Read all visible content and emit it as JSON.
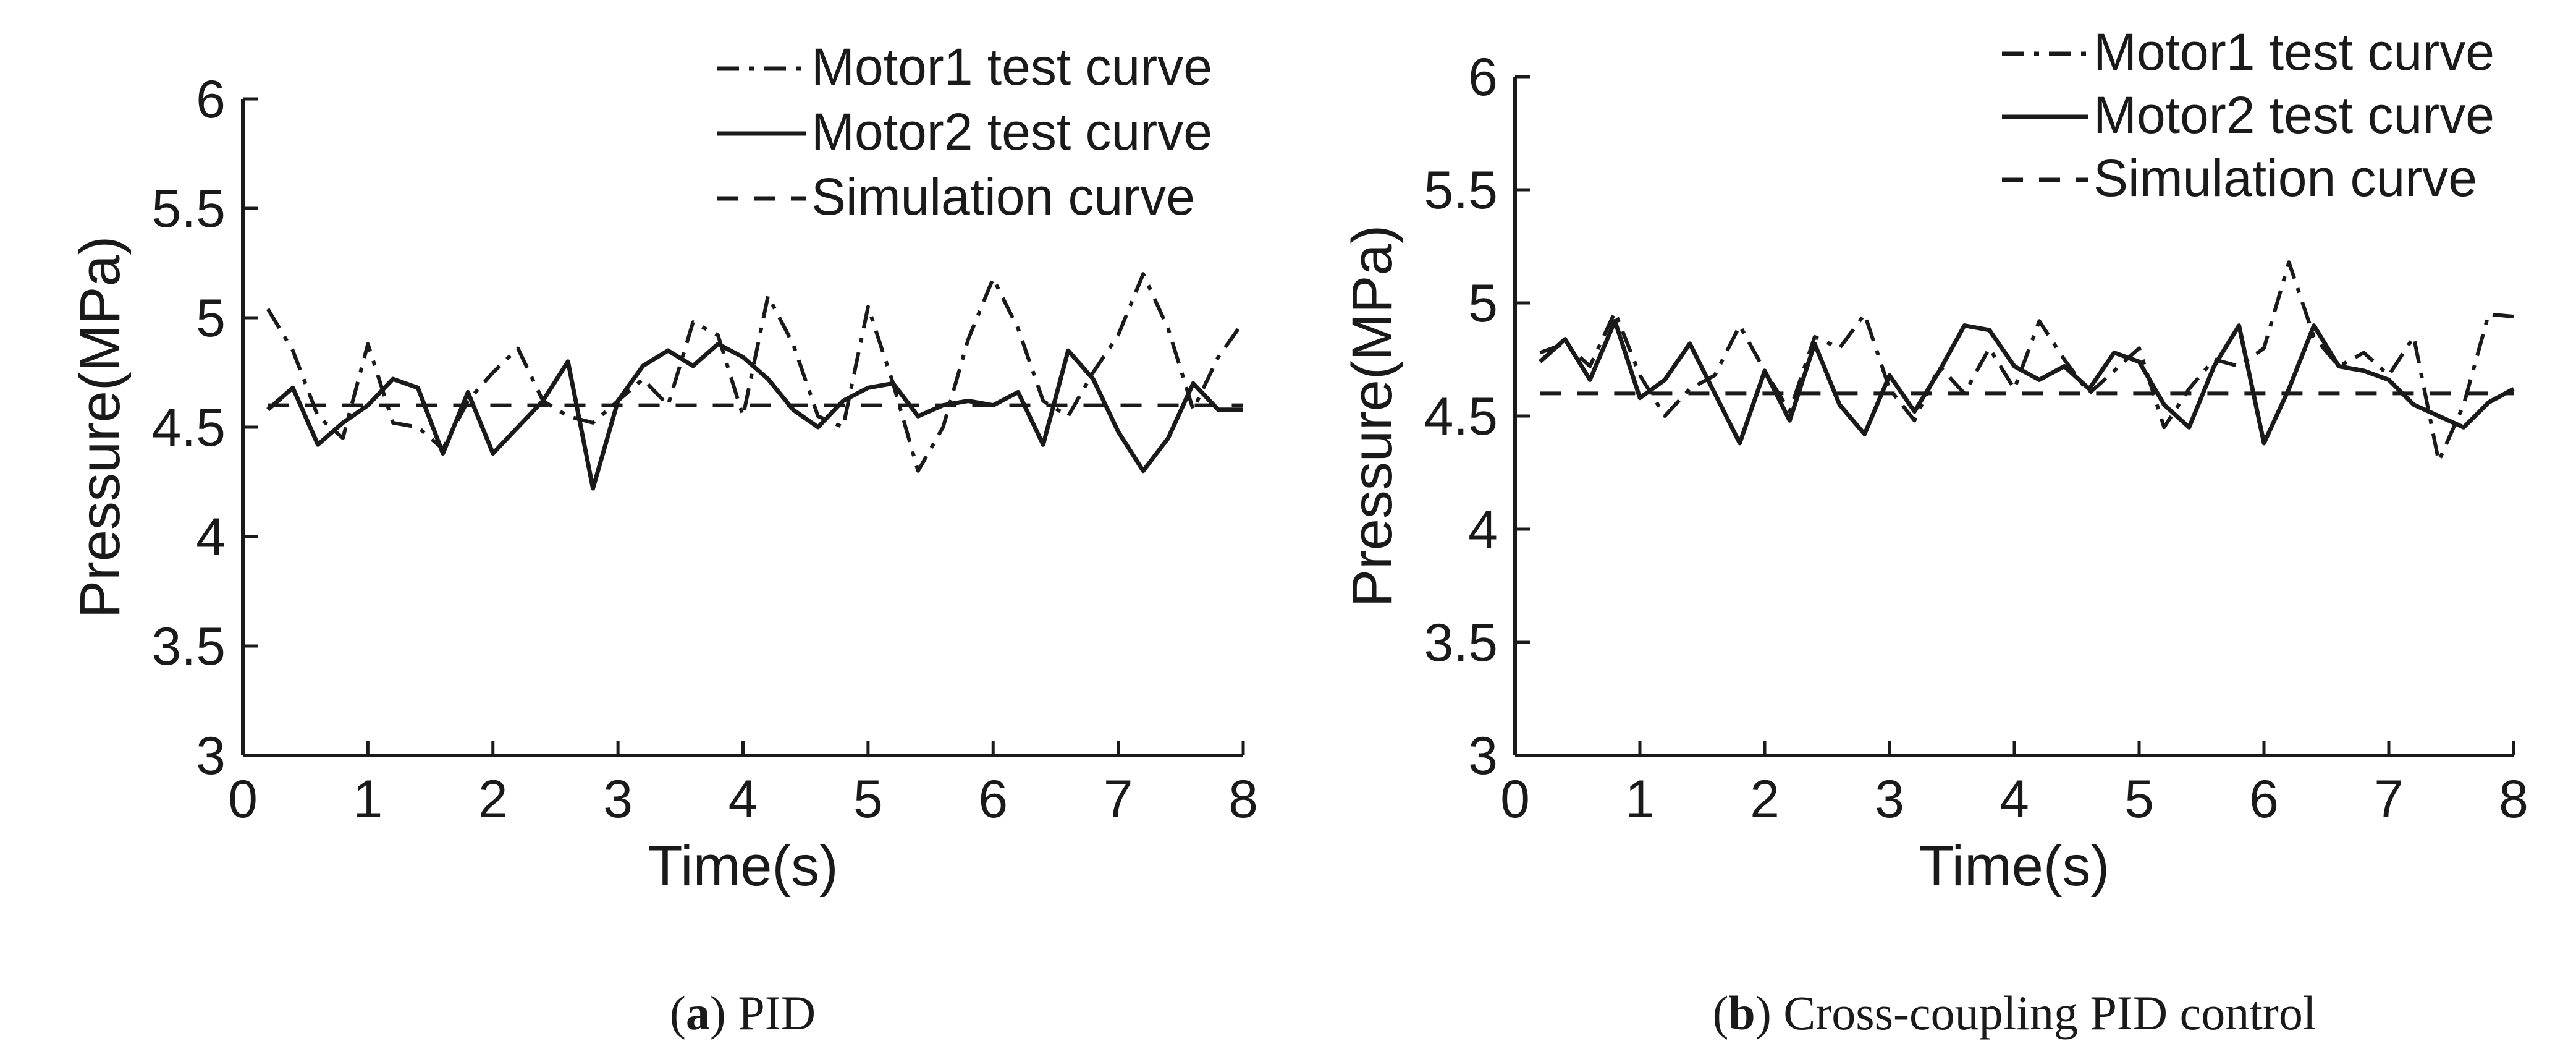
{
  "chart_data": [
    {
      "type": "line",
      "title": "",
      "xlabel": "Time(s)",
      "ylabel": "Pressure(MPa)",
      "xlim": [
        0,
        8
      ],
      "ylim": [
        3,
        6
      ],
      "xticks": [
        0,
        1,
        2,
        3,
        4,
        5,
        6,
        7,
        8
      ],
      "yticks": [
        3,
        3.5,
        4,
        4.5,
        5,
        5.5,
        6
      ],
      "xtick_labels": [
        "0",
        "1",
        "2",
        "3",
        "4",
        "5",
        "6",
        "7",
        "8"
      ],
      "ytick_labels": [
        "3",
        "3.5",
        "4",
        "4.5",
        "5",
        "5.5",
        "6"
      ],
      "grid": false,
      "legend_position": "top-right",
      "caption_letter": "a",
      "caption_text": " PID",
      "caption_paren_open": "(",
      "caption_paren_close": ")",
      "series": [
        {
          "name": "Motor1 test curve",
          "style": "dashdot",
          "x": [
            0.2,
            0.4,
            0.6,
            0.8,
            1.0,
            1.2,
            1.4,
            1.6,
            1.8,
            2.0,
            2.2,
            2.4,
            2.6,
            2.8,
            3.0,
            3.2,
            3.4,
            3.6,
            3.8,
            4.0,
            4.2,
            4.4,
            4.6,
            4.8,
            5.0,
            5.2,
            5.4,
            5.6,
            5.8,
            6.0,
            6.2,
            6.4,
            6.6,
            6.8,
            7.0,
            7.2,
            7.4,
            7.6,
            7.8,
            8.0
          ],
          "y": [
            5.04,
            4.85,
            4.55,
            4.45,
            4.88,
            4.52,
            4.5,
            4.4,
            4.62,
            4.75,
            4.86,
            4.62,
            4.55,
            4.52,
            4.62,
            4.72,
            4.6,
            4.98,
            4.92,
            4.55,
            5.1,
            4.88,
            4.55,
            4.5,
            5.05,
            4.7,
            4.3,
            4.5,
            4.9,
            5.18,
            4.95,
            4.62,
            4.55,
            4.75,
            4.92,
            5.2,
            4.95,
            4.58,
            4.82,
            4.98
          ]
        },
        {
          "name": "Motor2 test curve",
          "style": "solid",
          "x": [
            0.2,
            0.4,
            0.6,
            0.8,
            1.0,
            1.2,
            1.4,
            1.6,
            1.8,
            2.0,
            2.2,
            2.4,
            2.6,
            2.8,
            3.0,
            3.2,
            3.4,
            3.6,
            3.8,
            4.0,
            4.2,
            4.4,
            4.6,
            4.8,
            5.0,
            5.2,
            5.4,
            5.6,
            5.8,
            6.0,
            6.2,
            6.4,
            6.6,
            6.8,
            7.0,
            7.2,
            7.4,
            7.6,
            7.8,
            8.0
          ],
          "y": [
            4.58,
            4.68,
            4.42,
            4.52,
            4.6,
            4.72,
            4.68,
            4.38,
            4.66,
            4.38,
            4.5,
            4.62,
            4.8,
            4.22,
            4.62,
            4.78,
            4.85,
            4.78,
            4.88,
            4.82,
            4.72,
            4.58,
            4.5,
            4.62,
            4.68,
            4.7,
            4.55,
            4.6,
            4.62,
            4.6,
            4.66,
            4.42,
            4.85,
            4.72,
            4.48,
            4.3,
            4.45,
            4.7,
            4.58,
            4.58
          ]
        },
        {
          "name": "Simulation curve",
          "style": "dashed",
          "x": [
            0.2,
            8.0
          ],
          "y": [
            4.6,
            4.6
          ]
        }
      ]
    },
    {
      "type": "line",
      "title": "",
      "xlabel": "Time(s)",
      "ylabel": "Pressure(MPa)",
      "xlim": [
        0,
        8
      ],
      "ylim": [
        3,
        6
      ],
      "xticks": [
        0,
        1,
        2,
        3,
        4,
        5,
        6,
        7,
        8
      ],
      "yticks": [
        3,
        3.5,
        4,
        4.5,
        5,
        5.5,
        6
      ],
      "xtick_labels": [
        "0",
        "1",
        "2",
        "3",
        "4",
        "5",
        "6",
        "7",
        "8"
      ],
      "ytick_labels": [
        "3",
        "3.5",
        "4",
        "4.5",
        "5",
        "5.5",
        "6"
      ],
      "grid": false,
      "legend_position": "top-right",
      "caption_letter": "b",
      "caption_text": " Cross-coupling PID control",
      "caption_paren_open": "(",
      "caption_paren_close": ")",
      "series": [
        {
          "name": "Motor1 test curve",
          "style": "dashdot",
          "x": [
            0.2,
            0.4,
            0.6,
            0.8,
            1.0,
            1.2,
            1.4,
            1.6,
            1.8,
            2.0,
            2.2,
            2.4,
            2.6,
            2.8,
            3.0,
            3.2,
            3.4,
            3.6,
            3.8,
            4.0,
            4.2,
            4.4,
            4.6,
            4.8,
            5.0,
            5.2,
            5.4,
            5.6,
            5.8,
            6.0,
            6.2,
            6.4,
            6.6,
            6.8,
            7.0,
            7.2,
            7.4,
            7.6,
            7.8,
            8.0
          ],
          "y": [
            4.78,
            4.82,
            4.72,
            4.96,
            4.68,
            4.5,
            4.62,
            4.68,
            4.9,
            4.7,
            4.52,
            4.85,
            4.8,
            4.95,
            4.62,
            4.48,
            4.72,
            4.6,
            4.8,
            4.62,
            4.92,
            4.75,
            4.6,
            4.7,
            4.8,
            4.45,
            4.62,
            4.75,
            4.72,
            4.8,
            5.18,
            4.85,
            4.72,
            4.78,
            4.68,
            4.85,
            4.3,
            4.55,
            4.95,
            4.94
          ]
        },
        {
          "name": "Motor2 test curve",
          "style": "solid",
          "x": [
            0.2,
            0.4,
            0.6,
            0.8,
            1.0,
            1.2,
            1.4,
            1.6,
            1.8,
            2.0,
            2.2,
            2.4,
            2.6,
            2.8,
            3.0,
            3.2,
            3.4,
            3.6,
            3.8,
            4.0,
            4.2,
            4.4,
            4.6,
            4.8,
            5.0,
            5.2,
            5.4,
            5.6,
            5.8,
            6.0,
            6.2,
            6.4,
            6.6,
            6.8,
            7.0,
            7.2,
            7.4,
            7.6,
            7.8,
            8.0
          ],
          "y": [
            4.74,
            4.84,
            4.66,
            4.92,
            4.58,
            4.66,
            4.82,
            4.6,
            4.38,
            4.7,
            4.48,
            4.82,
            4.55,
            4.42,
            4.68,
            4.52,
            4.7,
            4.9,
            4.88,
            4.72,
            4.66,
            4.72,
            4.62,
            4.78,
            4.74,
            4.55,
            4.45,
            4.72,
            4.9,
            4.38,
            4.62,
            4.9,
            4.72,
            4.7,
            4.66,
            4.55,
            4.5,
            4.45,
            4.56,
            4.62
          ]
        },
        {
          "name": "Simulation curve",
          "style": "dashed",
          "x": [
            0.2,
            8.0
          ],
          "y": [
            4.6,
            4.6
          ]
        }
      ]
    }
  ]
}
